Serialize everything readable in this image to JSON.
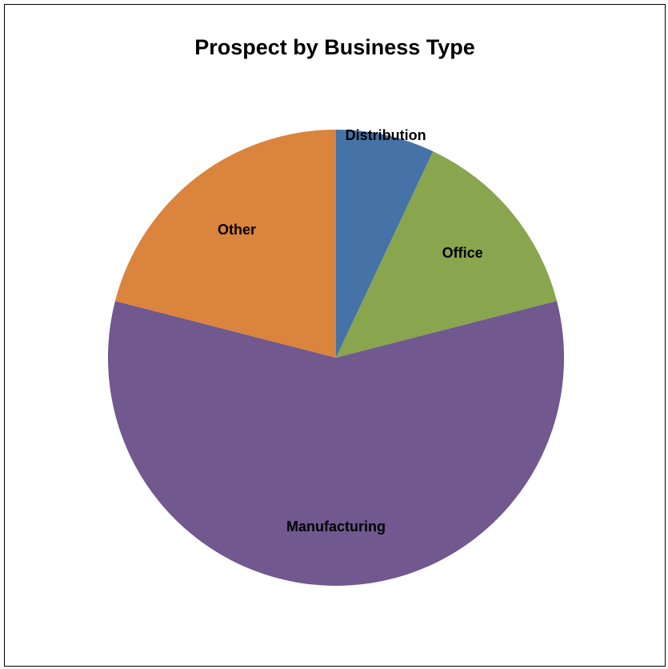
{
  "chart_data": {
    "type": "pie",
    "title": "Prospect by Business Type",
    "categories": [
      "Distribution",
      "Office",
      "Manufacturing",
      "Other"
    ],
    "values": [
      7,
      14,
      58,
      21
    ],
    "colors": [
      "#4572A7",
      "#89A54E",
      "#71588F",
      "#DB843D"
    ],
    "start_angle_deg": 0,
    "direction": "clockwise",
    "legend": "none",
    "labels": "category names on slices"
  }
}
